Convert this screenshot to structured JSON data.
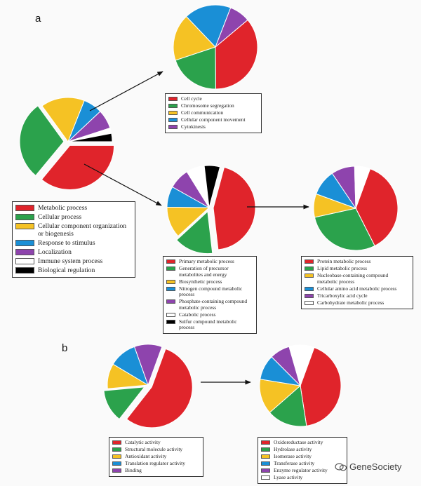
{
  "panel_labels": {
    "a": "a",
    "b": "b"
  },
  "watermark": "GeneSociety",
  "chart_data": [
    {
      "type": "pie",
      "series": [
        {
          "label": "Metabolic process",
          "color": "#e0242b",
          "percent": 36
        },
        {
          "label": "Cellular process",
          "color": "#2ba24c",
          "percent": 29
        },
        {
          "label": "Cellular component organization or biogenesis",
          "color": "#f5c224",
          "percent": 16
        },
        {
          "label": "Response to stimulus",
          "color": "#1a8fd6",
          "percent": 7
        },
        {
          "label": "Localization",
          "color": "#8e44ad",
          "percent": 7
        },
        {
          "label": "Immune system process",
          "color": "#ffffff",
          "percent": 2
        },
        {
          "label": "Biological regulation",
          "color": "#000000",
          "percent": 3
        }
      ]
    },
    {
      "type": "pie",
      "series": [
        {
          "label": "Cell cycle",
          "color": "#e0242b",
          "percent": 36
        },
        {
          "label": "Chromosome segregation",
          "color": "#2ba24c",
          "percent": 20
        },
        {
          "label": "Cell communication",
          "color": "#f5c224",
          "percent": 18
        },
        {
          "label": "Cellular component movement",
          "color": "#1a8fd6",
          "percent": 18
        },
        {
          "label": "Cytokinesis",
          "color": "#8e44ad",
          "percent": 8
        }
      ]
    },
    {
      "type": "pie",
      "series": [
        {
          "label": "Primary metabolic process",
          "color": "#e0242b",
          "percent": 44
        },
        {
          "label": "Generation of precursor metabolites and energy",
          "color": "#2ba24c",
          "percent": 15
        },
        {
          "label": "Biosynthetic process",
          "color": "#f5c224",
          "percent": 12
        },
        {
          "label": "Nitrogen compound metabolic process",
          "color": "#1a8fd6",
          "percent": 8
        },
        {
          "label": "Phosphate-containing compound metabolic process",
          "color": "#8e44ad",
          "percent": 8
        },
        {
          "label": "Catabolic process",
          "color": "#ffffff",
          "percent": 7
        },
        {
          "label": "Sulfur compound metabolic process",
          "color": "#000000",
          "percent": 6
        }
      ]
    },
    {
      "type": "pie",
      "series": [
        {
          "label": "Protein metabolic process",
          "color": "#e0242b",
          "percent": 37
        },
        {
          "label": "Lipid metabolic process",
          "color": "#2ba24c",
          "percent": 29
        },
        {
          "label": "Nucleobase-containing compound metabolic process",
          "color": "#f5c224",
          "percent": 9
        },
        {
          "label": "Cellular amino acid metabolic process",
          "color": "#1a8fd6",
          "percent": 10
        },
        {
          "label": "Tricarboxylic acid cycle",
          "color": "#8e44ad",
          "percent": 9
        },
        {
          "label": "Carbohydrate metabolic process",
          "color": "#ffffff",
          "percent": 6
        }
      ]
    },
    {
      "type": "pie",
      "series": [
        {
          "label": "Catalytic activity",
          "color": "#e0242b",
          "percent": 55
        },
        {
          "label": "Structural molecule activity",
          "color": "#2ba24c",
          "percent": 13
        },
        {
          "label": "Antioxidant activity",
          "color": "#f5c224",
          "percent": 10
        },
        {
          "label": "Translation regulator activity",
          "color": "#1a8fd6",
          "percent": 11
        },
        {
          "label": "Binding",
          "color": "#8e44ad",
          "percent": 11
        }
      ]
    },
    {
      "type": "pie",
      "series": [
        {
          "label": "Oxidoreductase activity",
          "color": "#e0242b",
          "percent": 42
        },
        {
          "label": "Hydrolase activity",
          "color": "#2ba24c",
          "percent": 16
        },
        {
          "label": "Isomerase activity",
          "color": "#f5c224",
          "percent": 14
        },
        {
          "label": "Transferase activity",
          "color": "#1a8fd6",
          "percent": 10
        },
        {
          "label": "Enzyme regulator activity",
          "color": "#8e44ad",
          "percent": 8
        },
        {
          "label": "Lyase activity",
          "color": "#ffffff",
          "percent": 10
        }
      ]
    }
  ]
}
